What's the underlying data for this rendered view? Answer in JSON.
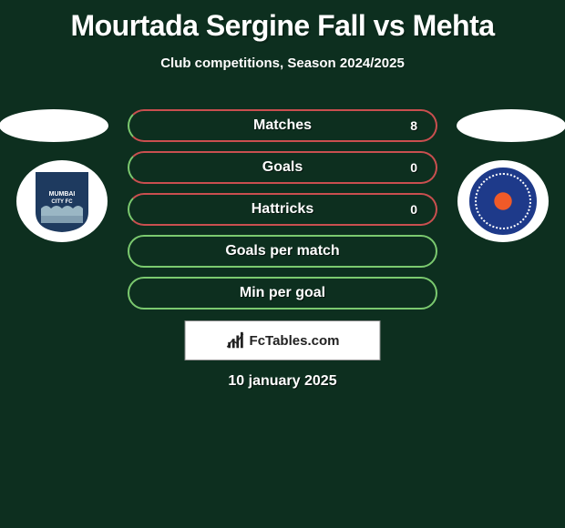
{
  "title": "Mourtada Sergine Fall vs Mehta",
  "subtitle": "Club competitions, Season 2024/2025",
  "date": "10 january 2025",
  "footer_label": "FcTables.com",
  "colors": {
    "background": "#0d2f1f",
    "row_border_left": "#7bc96f",
    "row_border_right": "#c94f4f",
    "row_fill": "#0d2f1f"
  },
  "rows": [
    {
      "label": "Matches",
      "left": "",
      "right": "8",
      "fill_side": "right"
    },
    {
      "label": "Goals",
      "left": "",
      "right": "0",
      "fill_side": "right"
    },
    {
      "label": "Hattricks",
      "left": "",
      "right": "0",
      "fill_side": "right"
    },
    {
      "label": "Goals per match",
      "left": "",
      "right": "",
      "fill_side": "none"
    },
    {
      "label": "Min per goal",
      "left": "",
      "right": "",
      "fill_side": "none"
    }
  ],
  "crests": {
    "left": {
      "name": "Mumbai City FC",
      "primary": "#1e3a5f",
      "secondary": "#9ab6c4"
    },
    "right": {
      "name": "Jamshedpur FC",
      "primary": "#1e3a8a",
      "secondary": "#f05a28"
    }
  }
}
